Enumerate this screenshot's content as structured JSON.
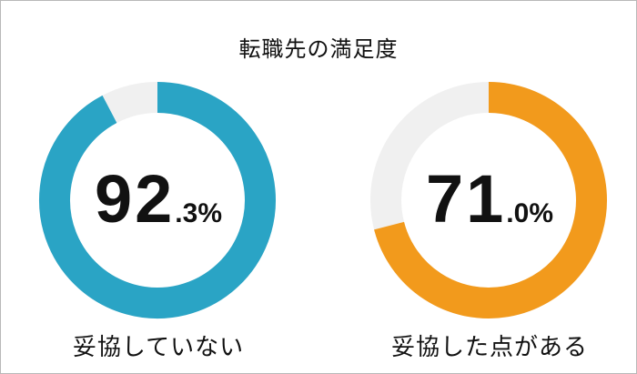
{
  "chart_data": [
    {
      "type": "pie",
      "title": "転職先の満足度",
      "label": "妥協していない",
      "value": 92.3,
      "value_int": "92",
      "value_dec": ".3%",
      "colors": {
        "fill": "#2aa4c5",
        "rest": "#f0f0f0"
      }
    },
    {
      "type": "pie",
      "title": "転職先の満足度",
      "label": "妥協した点がある",
      "value": 71.0,
      "value_int": "71",
      "value_dec": ".0%",
      "colors": {
        "fill": "#f29a1c",
        "rest": "#f0f0f0"
      }
    }
  ]
}
